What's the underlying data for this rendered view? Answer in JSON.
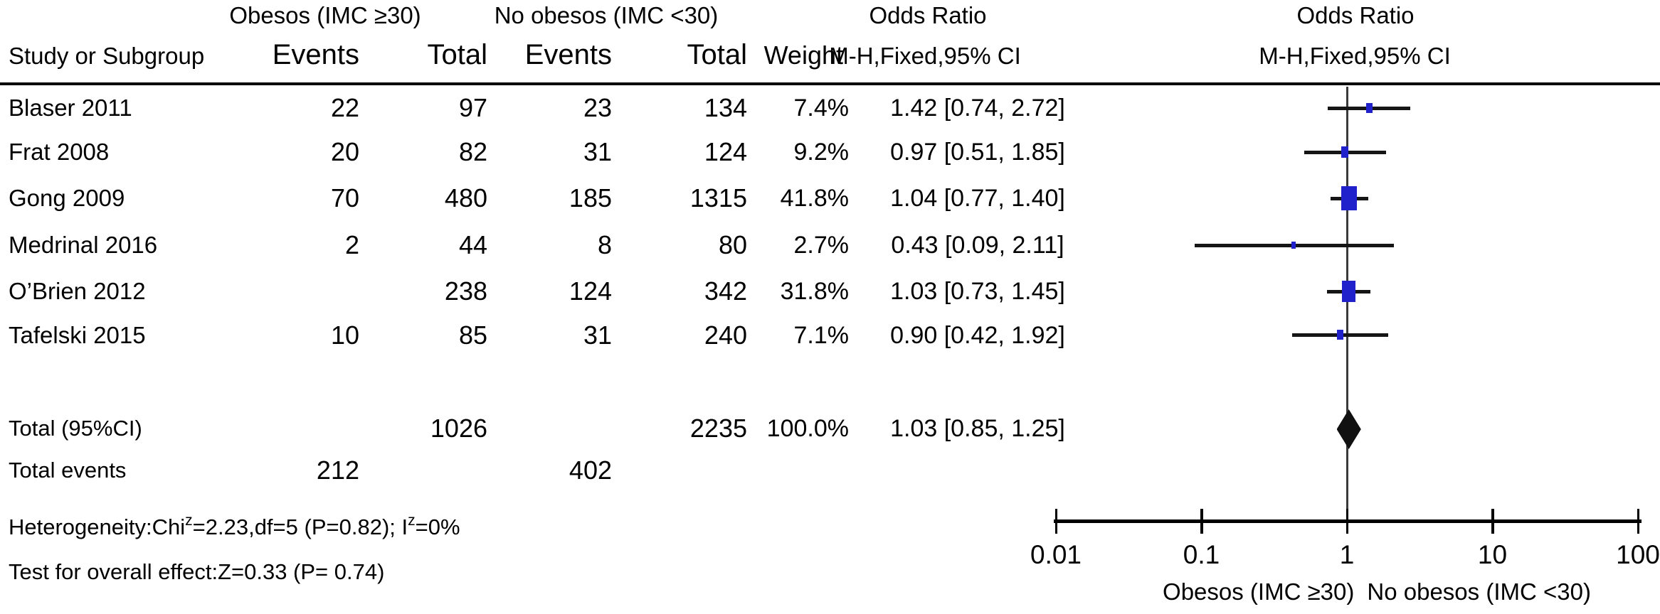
{
  "header": {
    "study_col": "Study or Subgroup",
    "group1": "Obesos (IMC ≥30)",
    "group2": "No obesos (IMC <30)",
    "events": "Events",
    "total": "Total",
    "weight": "Weight",
    "odds_ratio": "Odds Ratio",
    "method": "M-H,Fixed,95% CI"
  },
  "chart_data": {
    "type": "forest",
    "effect_measure": "Odds Ratio, M-H, Fixed, 95% CI",
    "x_scale": "log10",
    "x_range": [
      0.01,
      100
    ],
    "x_ticks": [
      0.01,
      0.1,
      1,
      10,
      100
    ],
    "x_tick_labels": [
      "0.01",
      "0.1",
      "1",
      "10",
      "100"
    ],
    "marker_color": "#2121cc",
    "diamond_color": "#111111",
    "axis_footer_left": "Obesos (IMC ≥30)",
    "axis_footer_right": "No obesos (IMC <30)",
    "studies": [
      {
        "study": "Blaser 2011",
        "events1": "22",
        "total1": "97",
        "events2": "23",
        "total2": "134",
        "weight": "7.4%",
        "weight_pct": 7.4,
        "ci_label": "1.42 [0.74, 2.72]",
        "or": 1.42,
        "ci_low": 0.74,
        "ci_high": 2.72
      },
      {
        "study": "Frat 2008",
        "events1": "20",
        "total1": "82",
        "events2": "31",
        "total2": "124",
        "weight": "9.2%",
        "weight_pct": 9.2,
        "ci_label": "0.97 [0.51, 1.85]",
        "or": 0.97,
        "ci_low": 0.51,
        "ci_high": 1.85
      },
      {
        "study": "Gong 2009",
        "events1": "70",
        "total1": "480",
        "events2": "185",
        "total2": "1315",
        "weight": "41.8%",
        "weight_pct": 41.8,
        "ci_label": "1.04 [0.77, 1.40]",
        "or": 1.04,
        "ci_low": 0.77,
        "ci_high": 1.4
      },
      {
        "study": "Medrinal 2016",
        "events1": "2",
        "total1": "44",
        "events2": "8",
        "total2": "80",
        "weight": "2.7%",
        "weight_pct": 2.7,
        "ci_label": "0.43 [0.09, 2.11]",
        "or": 0.43,
        "ci_low": 0.09,
        "ci_high": 2.11
      },
      {
        "study": "O’Brien 2012",
        "events1": "",
        "total1": "238",
        "events2": "124",
        "total2": "342",
        "weight": "31.8%",
        "weight_pct": 31.8,
        "ci_label": "1.03 [0.73, 1.45]",
        "or": 1.03,
        "ci_low": 0.73,
        "ci_high": 1.45
      },
      {
        "study": "Tafelski 2015",
        "events1": "10",
        "total1": "85",
        "events2": "31",
        "total2": "240",
        "weight": "7.1%",
        "weight_pct": 7.1,
        "ci_label": "0.90 [0.42, 1.92]",
        "or": 0.9,
        "ci_low": 0.42,
        "ci_high": 1.92
      }
    ],
    "total": {
      "label": "Total (95%CI)",
      "total1": "1026",
      "total2": "2235",
      "weight": "100.0%",
      "ci_label": "1.03 [0.85, 1.25]",
      "or": 1.03,
      "ci_low": 0.85,
      "ci_high": 1.25
    },
    "total_events": {
      "label": "Total events",
      "events1": "212",
      "events2": "402"
    }
  },
  "footnotes": {
    "het_pre": "Heterogeneity:Chi",
    "het_sup1": "z",
    "het_mid": "=2.23,df=5 (P=0.82); I",
    "het_sup2": "z",
    "het_post": "=0%",
    "overall": "Test for overall effect:Z=0.33 (P= 0.74)"
  }
}
